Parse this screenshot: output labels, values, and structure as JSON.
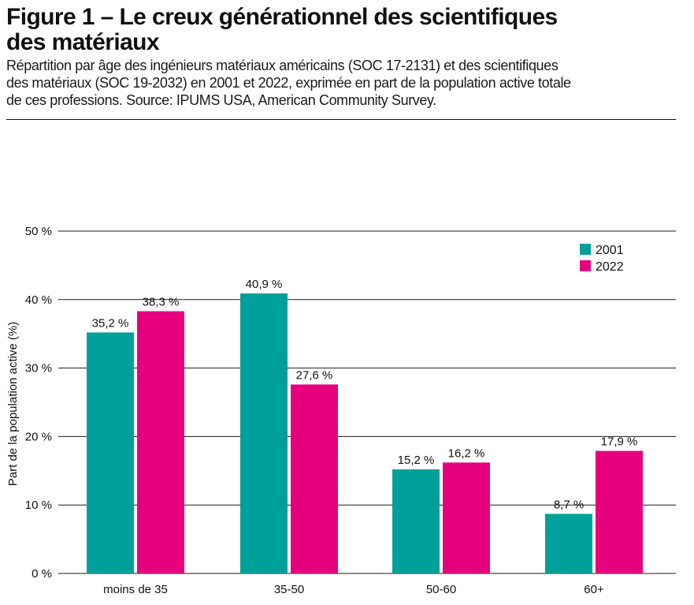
{
  "header": {
    "title_line1": "Figure 1 – Le creux générationnel des scientifiques",
    "title_line2": "des matériaux",
    "subtitle_line1": "Répartition par âge des ingénieurs matériaux américains (SOC 17-2131) et des scientifiques",
    "subtitle_line2": "des matériaux (SOC 19-2032) en 2001 et 2022, exprimée en part de la population active totale",
    "subtitle_line3": "de ces professions. Source: IPUMS USA, American Community Survey."
  },
  "chart_data": {
    "type": "bar",
    "categories": [
      "moins de 35",
      "35-50",
      "50-60",
      "60+"
    ],
    "series": [
      {
        "name": "2001",
        "values": [
          35.2,
          40.9,
          15.2,
          8.7
        ],
        "labels": [
          "35,2 %",
          "40,9 %",
          "15,2 %",
          "8,7 %"
        ],
        "color": "#00a09a"
      },
      {
        "name": "2022",
        "values": [
          38.3,
          27.6,
          16.2,
          17.9
        ],
        "labels": [
          "38,3 %",
          "27,6 %",
          "16,2 %",
          "17,9 %"
        ],
        "color": "#e6007e"
      }
    ],
    "ylabel": "Part de la population active (%)",
    "ylim": [
      0,
      50
    ],
    "yticks": [
      0,
      10,
      20,
      30,
      40,
      50
    ],
    "ytick_labels": [
      "0 %",
      "10 %",
      "20 %",
      "30 %",
      "40 %",
      "50 %"
    ],
    "grid": true,
    "legend_position": "top-right"
  }
}
